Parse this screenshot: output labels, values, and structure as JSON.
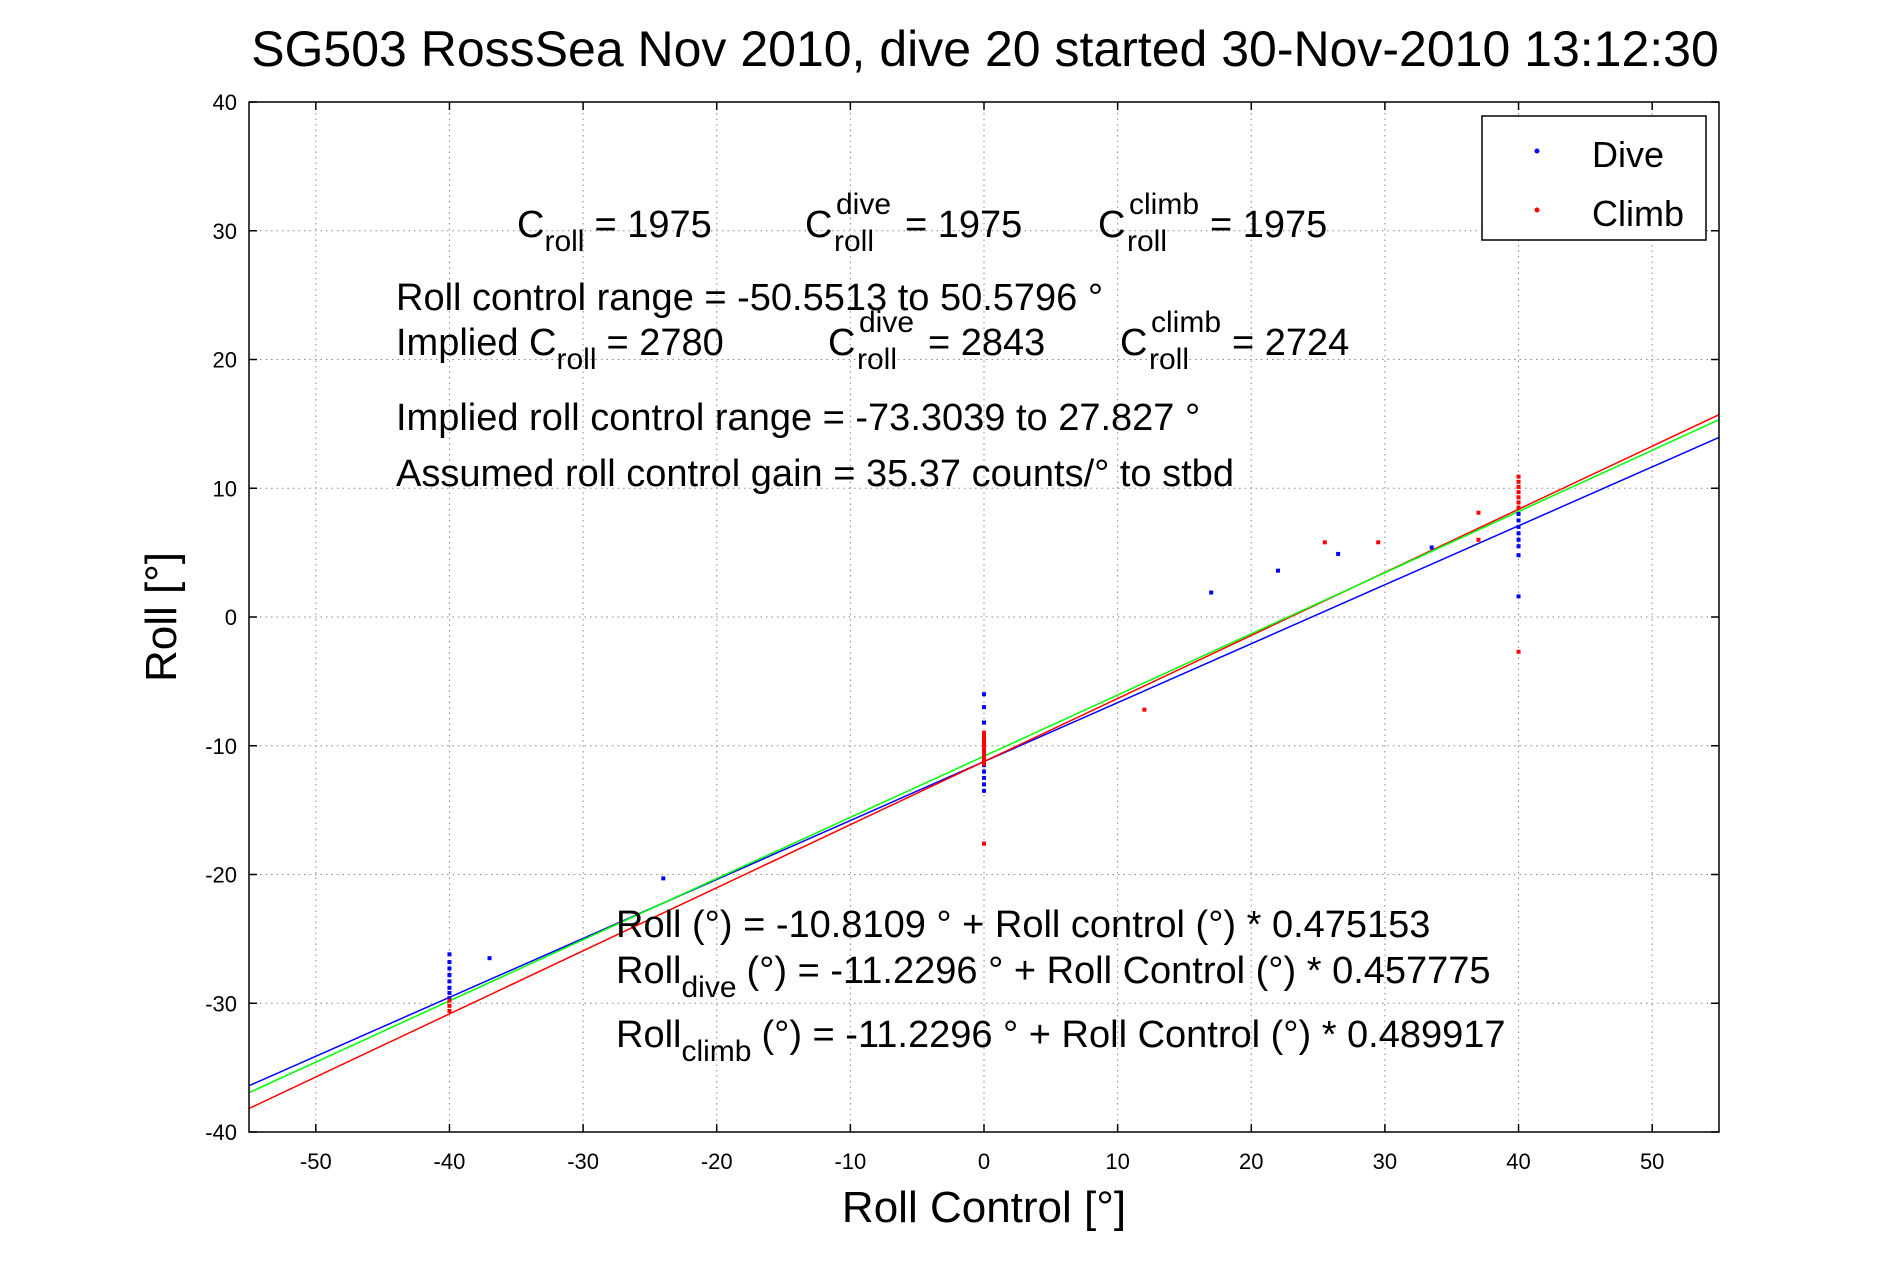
{
  "chart_data": {
    "type": "scatter",
    "title": "SG503 RossSea Nov 2010, dive 20 started 30-Nov-2010 13:12:30",
    "xlabel": "Roll Control [°]",
    "ylabel": "Roll [°]",
    "xlim": [
      -55,
      55
    ],
    "ylim": [
      -40,
      40
    ],
    "xticks": [
      -50,
      -40,
      -30,
      -20,
      -10,
      0,
      10,
      20,
      30,
      40,
      50
    ],
    "yticks": [
      -40,
      -30,
      -20,
      -10,
      0,
      10,
      20,
      30,
      40
    ],
    "grid": true,
    "legend_position": "top-right",
    "colors": {
      "dive": "#0000ff",
      "climb": "#ff0000",
      "combined": "#00ff00",
      "text": "#000000"
    },
    "series": [
      {
        "name": "Dive",
        "color": "#0000ff",
        "points": [
          [
            -40,
            -26.2
          ],
          [
            -40,
            -26.8
          ],
          [
            -40,
            -27.3
          ],
          [
            -40,
            -27.8
          ],
          [
            -40,
            -28.3
          ],
          [
            -40,
            -28.8
          ],
          [
            -40,
            -29.2
          ],
          [
            -40,
            -29.6
          ],
          [
            -37,
            -26.5
          ],
          [
            -24,
            -20.3
          ],
          [
            0,
            -6.0
          ],
          [
            0,
            -7.0
          ],
          [
            0,
            -8.2
          ],
          [
            0,
            -9.0
          ],
          [
            0,
            -9.8
          ],
          [
            0,
            -10.5
          ],
          [
            0,
            -11.0
          ],
          [
            0,
            -11.5
          ],
          [
            0,
            -12.0
          ],
          [
            0,
            -12.5
          ],
          [
            0,
            -13.0
          ],
          [
            0,
            -13.5
          ],
          [
            17,
            1.9
          ],
          [
            22,
            3.6
          ],
          [
            26.5,
            4.9
          ],
          [
            33.5,
            5.4
          ],
          [
            40,
            1.6
          ],
          [
            40,
            4.8
          ],
          [
            40,
            5.5
          ],
          [
            40,
            6.0
          ],
          [
            40,
            6.5
          ],
          [
            40,
            7.0
          ],
          [
            40,
            7.5
          ],
          [
            40,
            8.0
          ]
        ]
      },
      {
        "name": "Climb",
        "color": "#ff0000",
        "points": [
          [
            -40,
            -29.8
          ],
          [
            -40,
            -30.2
          ],
          [
            -40,
            -30.6
          ],
          [
            0,
            -9.0
          ],
          [
            0,
            -9.3
          ],
          [
            0,
            -9.6
          ],
          [
            0,
            -9.9
          ],
          [
            0,
            -10.2
          ],
          [
            0,
            -10.5
          ],
          [
            0,
            -10.8
          ],
          [
            0,
            -11.1
          ],
          [
            0,
            -11.4
          ],
          [
            0,
            -17.6
          ],
          [
            12,
            -7.2
          ],
          [
            25.5,
            5.8
          ],
          [
            29.5,
            5.8
          ],
          [
            37,
            6.0
          ],
          [
            37,
            8.1
          ],
          [
            40,
            8.5
          ],
          [
            40,
            8.9
          ],
          [
            40,
            9.3
          ],
          [
            40,
            9.7
          ],
          [
            40,
            10.1
          ],
          [
            40,
            10.5
          ],
          [
            40,
            10.9
          ],
          [
            40,
            -2.7
          ]
        ]
      }
    ],
    "fit_lines": [
      {
        "color": "#0000ff",
        "intercept": -11.2296,
        "slope": 0.457775
      },
      {
        "color": "#ff0000",
        "intercept": -11.2296,
        "slope": 0.489917
      },
      {
        "color": "#00ff00",
        "intercept": -10.8109,
        "slope": 0.475153
      }
    ],
    "annotations": {
      "croll_label": "C",
      "roll_sub": "roll",
      "dive_sup": "dive",
      "climb_sup": "climb",
      "croll_value": "= 1975",
      "croll_dive_value": "= 1975",
      "croll_climb_value": "= 1975",
      "range_line": "Roll control range = -50.5513 to 50.5796 °",
      "implied_prefix": "Implied C",
      "implied_croll_value": "= 2780",
      "implied_dive_value": "= 2843",
      "implied_climb_value": "= 2724",
      "implied_range_line": "Implied roll control range = -73.3039 to 27.827 °",
      "gain_line": "Assumed roll control gain = 35.37 counts/° to stbd",
      "eq_roll_line": "Roll (°) = -10.8109 ° + Roll control (°) * 0.475153",
      "eq_roll_prefix": "Roll",
      "eq_dive_sub": "dive",
      "eq_dive_rest": "(°) = -11.2296 ° + Roll Control (°) * 0.457775",
      "eq_climb_sub": "climb",
      "eq_climb_rest": "(°) = -11.2296 ° + Roll Control (°) * 0.489917"
    }
  }
}
